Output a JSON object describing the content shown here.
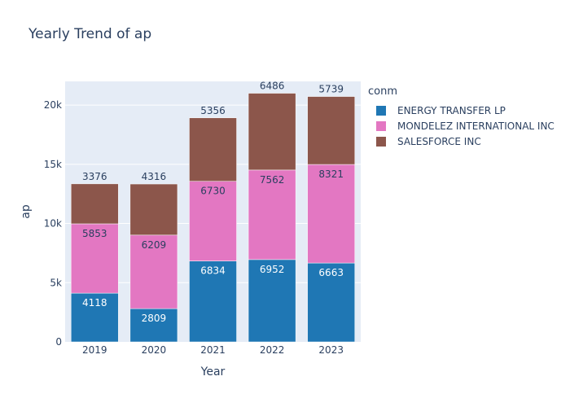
{
  "chart_data": {
    "type": "bar",
    "barmode": "stack",
    "title": "Yearly Trend of ap",
    "xlabel": "Year",
    "ylabel": "ap",
    "categories": [
      "2019",
      "2020",
      "2021",
      "2022",
      "2023"
    ],
    "ylim": [
      0,
      22000
    ],
    "yticks": [
      0,
      5000,
      10000,
      15000,
      20000
    ],
    "ytick_labels": [
      "0",
      "5k",
      "10k",
      "15k",
      "20k"
    ],
    "grid": true,
    "legend": {
      "title": "conm",
      "position": "right"
    },
    "series": [
      {
        "name": "ENERGY TRANSFER LP",
        "color": "#1f77b4",
        "values": [
          4118,
          2809,
          6834,
          6952,
          6663
        ]
      },
      {
        "name": "MONDELEZ INTERNATIONAL INC",
        "color": "#e377c2",
        "values": [
          5853,
          6209,
          6730,
          7562,
          8321
        ]
      },
      {
        "name": "SALESFORCE INC",
        "color": "#8c564b",
        "values": [
          3376,
          4316,
          5356,
          6486,
          5739
        ]
      }
    ]
  }
}
